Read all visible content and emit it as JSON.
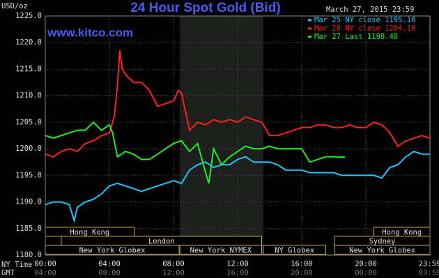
{
  "chart_data": {
    "type": "line",
    "title": "24 Hour Spot Gold (Bid)",
    "timestamp": "March 27, 2015 23:59",
    "source": "www.kitco.com",
    "y_label": "USD/oz",
    "x_label": "NY Time",
    "x2_label": "GMT",
    "xlim": [
      0,
      24
    ],
    "ylim": [
      1180,
      1225
    ],
    "grid": true,
    "legend": "upper right",
    "yticks": [
      {
        "value": 1180,
        "label": "1180.0"
      },
      {
        "value": 1185,
        "label": "1185.0"
      },
      {
        "value": 1190,
        "label": "1190.0"
      },
      {
        "value": 1195,
        "label": "1195.0"
      },
      {
        "value": 1200,
        "label": "1200.0"
      },
      {
        "value": 1205,
        "label": "1205.0"
      },
      {
        "value": 1210,
        "label": "1210.0"
      },
      {
        "value": 1215,
        "label": "1215.0"
      },
      {
        "value": 1220,
        "label": "1220.0"
      },
      {
        "value": 1225,
        "label": "1225.0"
      }
    ],
    "xticks": [
      {
        "value": 0,
        "label": "00:00"
      },
      {
        "value": 4,
        "label": "04:00"
      },
      {
        "value": 8,
        "label": "08:00"
      },
      {
        "value": 12,
        "label": "12:00"
      },
      {
        "value": 16,
        "label": "16:00"
      },
      {
        "value": 20,
        "label": "20:00"
      },
      {
        "value": 23.98,
        "label": "23:59"
      }
    ],
    "gmt_labels": [
      "04:00",
      "08:00",
      "12:00",
      "16:00",
      "20:00",
      "00:00",
      "03:59"
    ],
    "sessions": [
      "Hong Kong",
      "London",
      "New York Globex",
      "New York NYMEX",
      "NY Globex",
      "Hong Kong",
      "Sydney",
      "New York Globex"
    ],
    "series": [
      {
        "name": "Mar 25 NY close 1195.10",
        "color": "#1ec8ff",
        "x": [
          0,
          0.5,
          1,
          1.5,
          1.8,
          2,
          2.5,
          3,
          3.5,
          4,
          4.5,
          5,
          5.5,
          6,
          6.5,
          7,
          7.5,
          8,
          8.5,
          9,
          9.5,
          10,
          10.5,
          11,
          11.5,
          12,
          12.5,
          13,
          13.5,
          14,
          14.5,
          15,
          15.5,
          16,
          16.5,
          17,
          17.5,
          18,
          18.5,
          19,
          19.5,
          20,
          20.5,
          21,
          21.5,
          22,
          22.5,
          23,
          23.5,
          24
        ],
        "values": [
          1189.5,
          1190,
          1190,
          1189.5,
          1186.5,
          1189,
          1190,
          1190.5,
          1191.5,
          1193,
          1193.5,
          1193,
          1192.5,
          1192,
          1192.5,
          1193,
          1193.5,
          1194,
          1193.5,
          1196,
          1197,
          1197.5,
          1196.5,
          1197,
          1197,
          1198,
          1198.5,
          1197.5,
          1197.5,
          1197.5,
          1197,
          1196,
          1196,
          1196,
          1195.5,
          1195.5,
          1195.5,
          1195.5,
          1195,
          1195,
          1195,
          1195,
          1195,
          1194.5,
          1196.5,
          1197,
          1198.5,
          1199.5,
          1199,
          1199
        ]
      },
      {
        "name": "Mar 26 NY close 1204.10",
        "color": "#ff2020",
        "x": [
          0,
          0.5,
          1,
          1.5,
          2,
          2.5,
          3,
          3.5,
          4,
          4.3,
          4.5,
          4.65,
          4.8,
          5,
          5.5,
          6,
          6.5,
          7,
          7.5,
          8,
          8.3,
          8.5,
          9,
          9.5,
          10,
          10.5,
          11,
          11.5,
          12,
          12.5,
          13,
          13.5,
          14,
          14.5,
          15,
          15.5,
          16,
          16.5,
          17,
          17.5,
          18,
          18.5,
          19,
          19.5,
          20,
          20.5,
          21,
          21.5,
          22,
          22.5,
          23,
          23.5,
          24
        ],
        "values": [
          1199,
          1198.5,
          1199.5,
          1200,
          1199.5,
          1201,
          1201.5,
          1202.5,
          1203,
          1206,
          1212,
          1218.5,
          1215,
          1214,
          1212.5,
          1212.5,
          1211,
          1208,
          1208.5,
          1209,
          1211,
          1210.5,
          1203.5,
          1205,
          1204.5,
          1205.5,
          1205,
          1205.5,
          1205,
          1206,
          1205.5,
          1205,
          1202.5,
          1202.5,
          1203,
          1203.5,
          1204,
          1204,
          1204.5,
          1204.5,
          1204,
          1204,
          1204.5,
          1204,
          1204,
          1205,
          1204.5,
          1203,
          1200.5,
          1201.5,
          1202,
          1202.5,
          1202
        ]
      },
      {
        "name": "Mar 27 Last 1198.40",
        "color": "#22ee22",
        "x": [
          0,
          0.5,
          1,
          1.5,
          2,
          2.5,
          3,
          3.5,
          4,
          4.2,
          4.5,
          5,
          5.5,
          6,
          6.5,
          7,
          7.5,
          8,
          8.5,
          9,
          9.5,
          10,
          10.2,
          10.5,
          11,
          11.5,
          12,
          12.5,
          13,
          13.5,
          14,
          14.5,
          15,
          15.5,
          16,
          16.5,
          17,
          17.5,
          18,
          18.7
        ],
        "values": [
          1202.5,
          1202,
          1202.5,
          1203,
          1203.5,
          1203.5,
          1205,
          1203.5,
          1204.5,
          1203,
          1198.5,
          1199.5,
          1199,
          1198,
          1198,
          1199,
          1200,
          1201,
          1201.5,
          1199.5,
          1201,
          1195.5,
          1193.5,
          1200,
          1197,
          1198.5,
          1199.5,
          1200.5,
          1200,
          1200,
          1200.5,
          1200,
          1200,
          1200,
          1200,
          1197.5,
          1198,
          1198.5,
          1198.5,
          1198.4
        ]
      }
    ]
  }
}
